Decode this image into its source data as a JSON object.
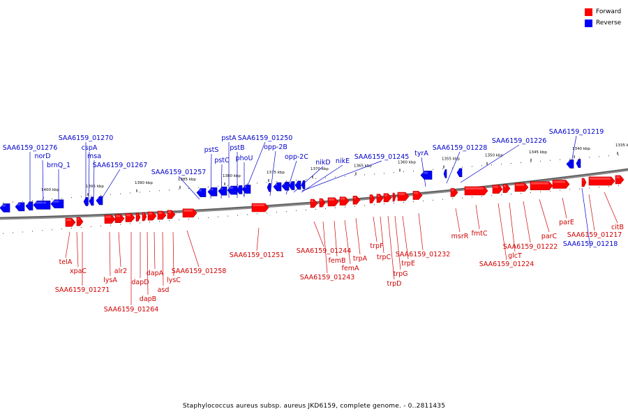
{
  "legend": {
    "forward_label": "Forward",
    "reverse_label": "Reverse",
    "forward_color": "#ff0000",
    "reverse_color": "#0000ff"
  },
  "caption": "Staphylococcus aureus subsp. aureus JKD6159, complete genome. - 0..2811435",
  "ticks": [
    "1400 kbp",
    "1395 kbp",
    "1390 kbp",
    "1385 kbp",
    "1380 kbp",
    "1375 kbp",
    "1370 kbp",
    "1365 kbp",
    "1360 kbp",
    "1355 kbp",
    "1350 kbp",
    "1345 kbp",
    "1340 kbp",
    "1335 kbp"
  ],
  "forward_genes": [
    "telA",
    "xpaC",
    "SAA6159_01271",
    "alr2",
    "lysA",
    "SAA6159_01264",
    "dapD",
    "dapB",
    "dapA",
    "asd",
    "lysC",
    "SAA6159_01258",
    "SAA6159_01251",
    "SAA6159_01244",
    "SAA6159_01243",
    "femB",
    "femA",
    "trpA",
    "trpF",
    "trpC",
    "trpD",
    "trpG",
    "trpE",
    "SAA6159_01232",
    "msrR",
    "fmtC",
    "glcT",
    "SAA6159_01224",
    "SAA6159_01222",
    "parC",
    "parE",
    "SAA6159_01217",
    "citB"
  ],
  "reverse_genes": [
    "SAA6159_01276",
    "norD",
    "brnQ_1",
    "SAA6159_01270",
    "cspA",
    "msa",
    "SAA6159_01267",
    "SAA6159_01257",
    "pstS",
    "pstC",
    "pstA",
    "pstB",
    "phoU",
    "SAA6159_01250",
    "opp-2B",
    "opp-2C",
    "nikD",
    "nikE",
    "SAA6159_01245",
    "tyrA",
    "SAA6159_01228",
    "SAA6159_01226",
    "SAA6159_01219",
    "SAA6159_01218"
  ]
}
